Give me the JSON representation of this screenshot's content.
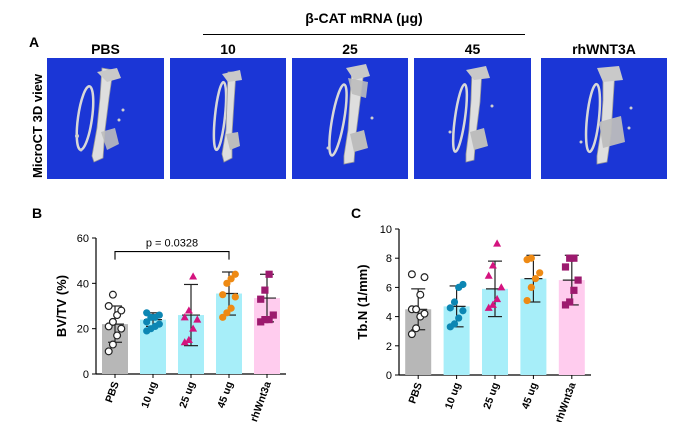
{
  "panelA": {
    "label": "A",
    "row_label": "MicroCT 3D view",
    "group_title": "β-CAT mRNA (μg)",
    "columns": [
      "PBS",
      "10",
      "25",
      "45",
      "rhWNT3A"
    ],
    "bg_color": "#1b36d6"
  },
  "chart_data": [
    {
      "panel": "B",
      "type": "bar",
      "title": "",
      "xlabel": "",
      "ylabel": "BV/TV (%)",
      "ylim": [
        0,
        60
      ],
      "yticks": [
        "0",
        "20",
        "40",
        "60"
      ],
      "categories": [
        "PBS",
        "10 ug",
        "25 ug",
        "45 ug",
        "rhWnt3a"
      ],
      "means": [
        22,
        24,
        26,
        35.5,
        33.5
      ],
      "sd": [
        8,
        3,
        13.5,
        9.5,
        10.5
      ],
      "points": [
        [
          10,
          13,
          17,
          20,
          21,
          23,
          26,
          28,
          30,
          35
        ],
        [
          19,
          20,
          21,
          22,
          23,
          25,
          25,
          26,
          27
        ],
        [
          14,
          15,
          20,
          24,
          25,
          28,
          43
        ],
        [
          25,
          27,
          29,
          34,
          35,
          40,
          42,
          44
        ],
        [
          23,
          24,
          24,
          26,
          33,
          37,
          44
        ]
      ],
      "bar_colors": [
        "#b7b7b7",
        "#a7eef9",
        "#a7eef9",
        "#a7eef9",
        "#ffccee"
      ],
      "marker_colors": [
        "#ffffff",
        "#0c86b3",
        "#d4137f",
        "#ee8a14",
        "#9c1a6e"
      ],
      "marker_shapes": [
        "circle-open",
        "circle",
        "triangle",
        "circle",
        "square"
      ],
      "annotation": {
        "text": "p = 0.0328",
        "from": "PBS",
        "to": "45 ug"
      }
    },
    {
      "panel": "C",
      "type": "bar",
      "title": "",
      "xlabel": "",
      "ylabel": "Tb.N (1/mm)",
      "ylim": [
        0,
        10
      ],
      "yticks": [
        "0",
        "2",
        "4",
        "6",
        "8",
        "10"
      ],
      "categories": [
        "PBS",
        "10 ug",
        "25 ug",
        "45 ug",
        "rhWnt3a"
      ],
      "means": [
        4.5,
        4.7,
        5.9,
        6.6,
        6.5
      ],
      "sd": [
        1.4,
        1.4,
        1.9,
        1.6,
        1.7
      ],
      "points": [
        [
          2.8,
          3.2,
          4.0,
          4.2,
          4.5,
          4.5,
          5.5,
          6.7,
          6.9
        ],
        [
          3.3,
          3.5,
          3.9,
          4.4,
          4.6,
          5.0,
          6.0,
          6.2
        ],
        [
          4.6,
          4.8,
          5.2,
          6.0,
          6.8,
          7.5,
          9.0
        ],
        [
          5.1,
          6.0,
          6.6,
          7.0,
          7.9,
          8.0
        ],
        [
          4.8,
          5.0,
          5.8,
          6.5,
          7.4,
          8.0,
          8.0
        ]
      ],
      "bar_colors": [
        "#b7b7b7",
        "#a7eef9",
        "#a7eef9",
        "#a7eef9",
        "#ffccee"
      ],
      "marker_colors": [
        "#ffffff",
        "#0c86b3",
        "#d4137f",
        "#ee8a14",
        "#9c1a6e"
      ],
      "marker_shapes": [
        "circle-open",
        "circle",
        "triangle",
        "circle",
        "square"
      ]
    }
  ]
}
